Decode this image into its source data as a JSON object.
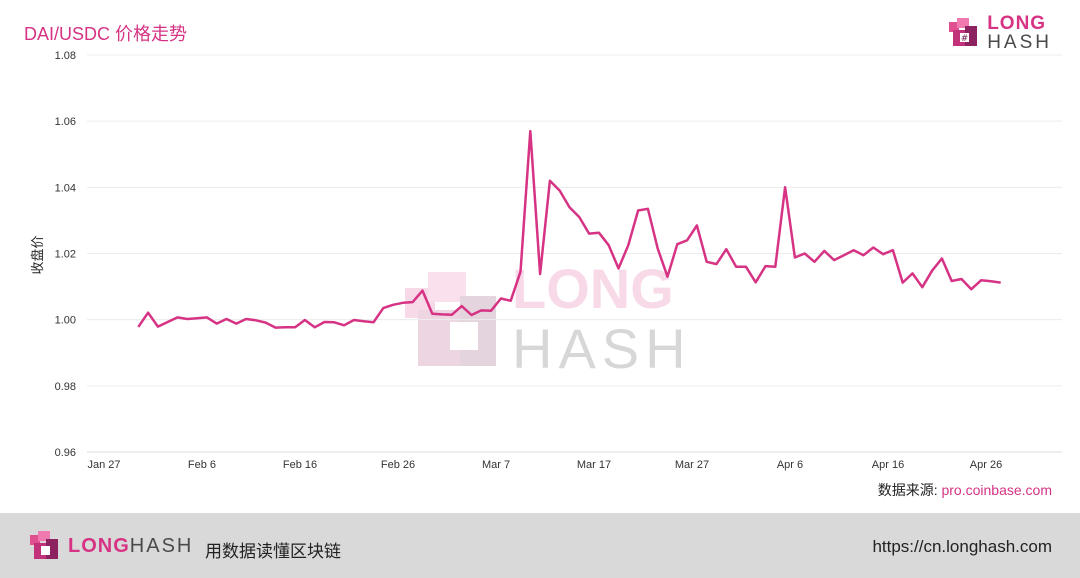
{
  "header": {
    "title": "DAI/USDC 价格走势"
  },
  "brand": {
    "logo_top": "LONG",
    "logo_bottom": "HASH",
    "brand_color": "#d63384"
  },
  "watermark": {
    "top": "LONG",
    "bottom": "HASH"
  },
  "source": {
    "label": "数据来源:",
    "url": "pro.coinbase.com"
  },
  "footer": {
    "brand_a": "LONG",
    "brand_b": "HASH",
    "slogan": "用数据读懂区块链",
    "site": "https://cn.longhash.com"
  },
  "chart_data": {
    "type": "line",
    "ylabel": "收盘价",
    "ylim": [
      0.96,
      1.08
    ],
    "yticks": [
      "0.96",
      "0.98",
      "1.00",
      "1.02",
      "1.04",
      "1.06",
      "1.08"
    ],
    "x_start": "2020-01-27",
    "xticks": [
      {
        "label": "Jan 27",
        "day": 0
      },
      {
        "label": "Feb 6",
        "day": 10
      },
      {
        "label": "Feb 16",
        "day": 20
      },
      {
        "label": "Feb 26",
        "day": 30
      },
      {
        "label": "Mar 7",
        "day": 40
      },
      {
        "label": "Mar 17",
        "day": 50
      },
      {
        "label": "Mar 27",
        "day": 60
      },
      {
        "label": "Apr 6",
        "day": 70
      },
      {
        "label": "Apr 16",
        "day": 80
      },
      {
        "label": "Apr 26",
        "day": 90
      }
    ],
    "x_max_day": 98,
    "grid": true,
    "line_color": "#d63384",
    "series": [
      {
        "name": "",
        "start_day": 3.5,
        "values": [
          0.9978,
          1.0021,
          0.9979,
          0.9993,
          1.0007,
          1.0002,
          1.0004,
          1.0007,
          0.9988,
          1.0002,
          0.9988,
          1.0002,
          0.9998,
          0.9991,
          0.9976,
          0.9977,
          0.9977,
          0.9999,
          0.9977,
          0.9993,
          0.9992,
          0.9983,
          0.9999,
          0.9995,
          0.9992,
          1.0035,
          1.0045,
          1.0051,
          1.0053,
          1.0088,
          1.0018,
          1.0016,
          1.0015,
          1.0041,
          1.0014,
          1.0028,
          1.0027,
          1.0064,
          1.0057,
          1.0145,
          1.057,
          1.0138,
          1.042,
          1.039,
          1.034,
          1.031,
          1.026,
          1.0263,
          1.0225,
          1.0155,
          1.0225,
          1.033,
          1.0335,
          1.0215,
          1.013,
          1.0228,
          1.024,
          1.0285,
          1.0175,
          1.0168,
          1.0213,
          1.016,
          1.016,
          1.0113,
          1.0162,
          1.016,
          1.04,
          1.0188,
          1.02,
          1.0175,
          1.0208,
          1.018,
          1.0195,
          1.021,
          1.0195,
          1.0218,
          1.0198,
          1.021,
          1.0112,
          1.014,
          1.0098,
          1.0148,
          1.0185,
          1.0117,
          1.0123,
          1.0092,
          1.0119,
          1.0116,
          1.0112
        ]
      }
    ]
  }
}
